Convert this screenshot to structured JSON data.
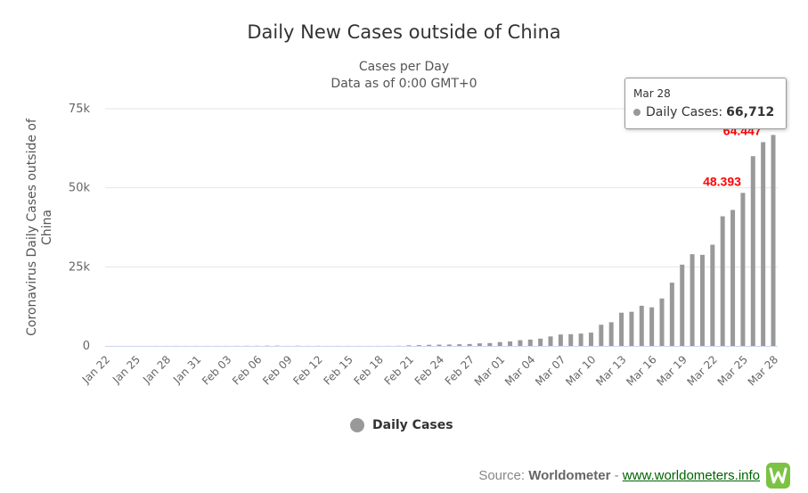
{
  "chart_data": {
    "type": "bar",
    "title": "Daily New Cases outside of China",
    "subtitle": [
      "Cases per Day",
      "Data as of 0:00 GMT+0"
    ],
    "ylabel": "Coronavirus Daily Cases outside of China",
    "xlabel": "",
    "ylim": [
      0,
      75000
    ],
    "yticks": [
      {
        "value": 0,
        "label": "0"
      },
      {
        "value": 25000,
        "label": "25k"
      },
      {
        "value": 50000,
        "label": "50k"
      },
      {
        "value": 75000,
        "label": "75k"
      }
    ],
    "grid": true,
    "legend_position": "bottom-center",
    "bar_color": "#999999",
    "categories": [
      "Jan 22",
      "Jan 23",
      "Jan 24",
      "Jan 25",
      "Jan 26",
      "Jan 27",
      "Jan 28",
      "Jan 29",
      "Jan 30",
      "Jan 31",
      "Feb 01",
      "Feb 02",
      "Feb 03",
      "Feb 04",
      "Feb 05",
      "Feb 06",
      "Feb 07",
      "Feb 08",
      "Feb 09",
      "Feb 10",
      "Feb 11",
      "Feb 12",
      "Feb 13",
      "Feb 14",
      "Feb 15",
      "Feb 16",
      "Feb 17",
      "Feb 18",
      "Feb 19",
      "Feb 20",
      "Feb 21",
      "Feb 22",
      "Feb 23",
      "Feb 24",
      "Feb 25",
      "Feb 26",
      "Feb 27",
      "Feb 28",
      "Feb 29",
      "Mar 01",
      "Mar 02",
      "Mar 03",
      "Mar 04",
      "Mar 05",
      "Mar 06",
      "Mar 07",
      "Mar 08",
      "Mar 09",
      "Mar 10",
      "Mar 11",
      "Mar 12",
      "Mar 13",
      "Mar 14",
      "Mar 15",
      "Mar 16",
      "Mar 17",
      "Mar 18",
      "Mar 19",
      "Mar 20",
      "Mar 21",
      "Mar 22",
      "Mar 23",
      "Mar 24",
      "Mar 25",
      "Mar 26",
      "Mar 27",
      "Mar 28"
    ],
    "xtick_labels": [
      "Jan 22",
      "Jan 25",
      "Jan 28",
      "Jan 31",
      "Feb 03",
      "Feb 06",
      "Feb 09",
      "Feb 12",
      "Feb 15",
      "Feb 18",
      "Feb 21",
      "Feb 24",
      "Feb 27",
      "Mar 01",
      "Mar 04",
      "Mar 07",
      "Mar 10",
      "Mar 13",
      "Mar 16",
      "Mar 19",
      "Mar 22",
      "Mar 25",
      "Mar 28"
    ],
    "series": [
      {
        "name": "Daily Cases",
        "values": [
          0,
          5,
          8,
          10,
          10,
          15,
          20,
          25,
          20,
          25,
          20,
          25,
          30,
          40,
          50,
          60,
          80,
          90,
          20,
          70,
          30,
          40,
          20,
          30,
          30,
          20,
          20,
          30,
          40,
          60,
          180,
          250,
          350,
          400,
          440,
          520,
          600,
          800,
          900,
          1200,
          1400,
          1800,
          2000,
          2300,
          3000,
          3600,
          3700,
          3900,
          4200,
          6700,
          7500,
          10500,
          10800,
          12700,
          12200,
          15000,
          20000,
          25700,
          29000,
          28800,
          32000,
          41000,
          43000,
          48393,
          60000,
          64447,
          66712
        ]
      }
    ],
    "data_labels": [
      {
        "category": "Mar 25",
        "text": "48.393",
        "color": "#ff0000"
      },
      {
        "category": "Mar 27",
        "text": "64.447",
        "color": "#ff0000"
      }
    ],
    "legend": [
      {
        "name": "Daily Cases",
        "color": "#999999"
      }
    ]
  },
  "tooltip": {
    "date": "Mar 28",
    "series_name": "Daily Cases:",
    "value": "66,712"
  },
  "source": {
    "prefix": "Source:",
    "name": "Worldometer",
    "separator": "-",
    "link": "www.worldometers.info",
    "logo_letter": "W"
  }
}
